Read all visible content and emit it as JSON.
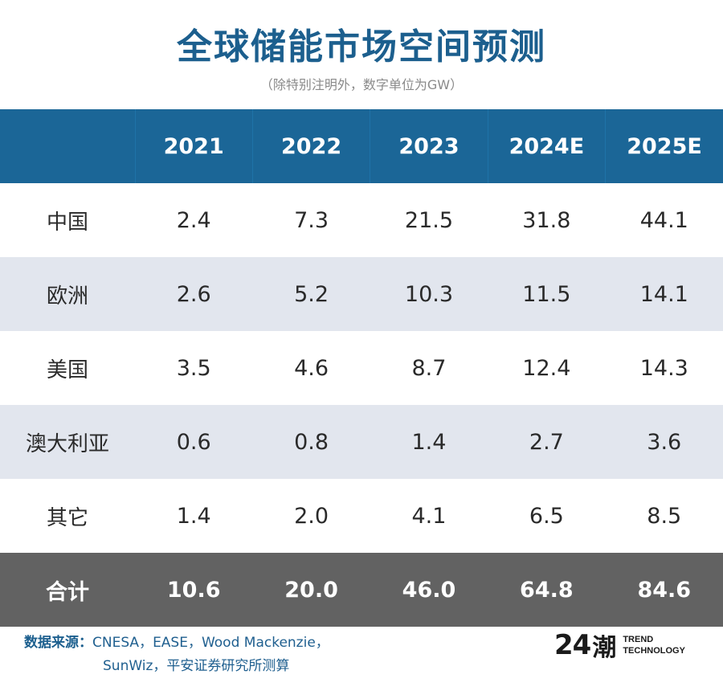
{
  "chart_data": {
    "type": "table",
    "title": "全球储能市场空间预测",
    "subtitle": "（除特别注明外，数字单位为GW）",
    "columns": [
      "",
      "2021",
      "2022",
      "2023",
      "2024E",
      "2025E"
    ],
    "rows": [
      {
        "region": "中国",
        "values": [
          "2.4",
          "7.3",
          "21.5",
          "31.8",
          "44.1"
        ]
      },
      {
        "region": "欧洲",
        "values": [
          "2.6",
          "5.2",
          "10.3",
          "11.5",
          "14.1"
        ]
      },
      {
        "region": "美国",
        "values": [
          "3.5",
          "4.6",
          "8.7",
          "12.4",
          "14.3"
        ]
      },
      {
        "region": "澳大利亚",
        "values": [
          "0.6",
          "0.8",
          "1.4",
          "2.7",
          "3.6"
        ]
      },
      {
        "region": "其它",
        "values": [
          "1.4",
          "2.0",
          "4.1",
          "6.5",
          "8.5"
        ]
      }
    ],
    "total": {
      "region": "合计",
      "values": [
        "10.6",
        "20.0",
        "46.0",
        "64.8",
        "84.6"
      ]
    }
  },
  "footer": {
    "source_label": "数据来源：",
    "source_line1": "CNESA，EASE，Wood Mackenzie，",
    "source_line2": "SunWiz，平安证券研究所测算",
    "brand_number": "24",
    "brand_mark": "潮",
    "brand_line1": "TREND",
    "brand_line2": "TECHNOLOGY"
  },
  "colors": {
    "title": "#1c5f8e",
    "header_bg": "#1b6697",
    "stripe": "#e2e6ee",
    "total_bg": "#626262"
  }
}
